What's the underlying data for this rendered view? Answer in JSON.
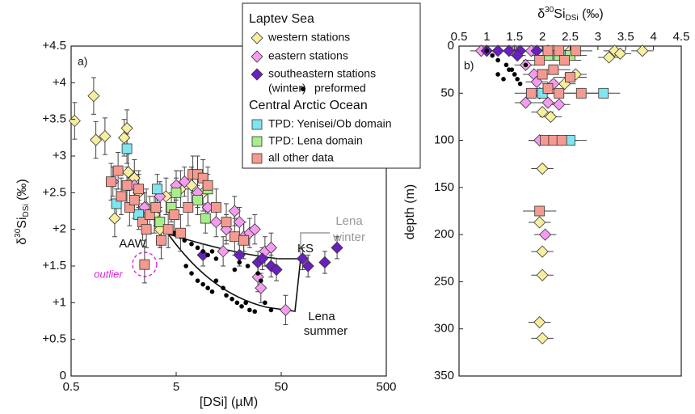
{
  "chart_data": [
    {
      "type": "scatter",
      "panel_label": "a)",
      "xscale": "log",
      "xlabel": "[DSi] (µM)",
      "ylabel": [
        "δ",
        "30",
        "Si",
        "DSi",
        " (‰)"
      ],
      "xlim": [
        0.5,
        500
      ],
      "xticks": [
        0.5,
        5,
        50,
        500
      ],
      "ylim": [
        0,
        4.5
      ],
      "yticks": [
        0,
        {
          "value": 0.5,
          "label": "+0.5"
        },
        {
          "value": 1,
          "label": "+1"
        },
        {
          "value": 1.5,
          "label": "+1.5"
        },
        {
          "value": 2,
          "label": "+2"
        },
        {
          "value": 2.5,
          "label": "+2.5"
        },
        {
          "value": 3,
          "label": "+3"
        },
        {
          "value": 3.5,
          "label": "+3.5"
        },
        {
          "value": 4,
          "label": "+4"
        },
        {
          "value": 4.5,
          "label": "+4.5"
        }
      ],
      "grid": false,
      "legend_groups": [
        "Laptev Sea",
        "Central Arctic Ocean"
      ],
      "annotations": [
        "AAW",
        "outlier",
        "Lena",
        "winter",
        "KS",
        "Lena",
        "summer"
      ],
      "series": [
        {
          "name": "western stations",
          "color": "#f7ef9e",
          "marker": "diamond",
          "error": 0.25,
          "x": [
            0.54,
            0.82,
            0.86,
            1.05,
            1.7,
            1.6,
            1.75,
            2.0,
            2.2,
            2.6,
            3.1,
            4,
            5.5,
            7,
            9,
            1.3,
            3.5
          ],
          "values": [
            3.48,
            3.82,
            3.22,
            3.27,
            3.38,
            3.25,
            2.78,
            2.7,
            2.5,
            2.3,
            2.2,
            2.45,
            2.55,
            2.6,
            2.5,
            2.15,
            2.0
          ]
        },
        {
          "name": "eastern stations",
          "color": "#f59cf0",
          "marker": "diamond",
          "error": 0.2,
          "x": [
            1.25,
            2.0,
            2.5,
            3.5,
            5,
            6,
            8,
            10,
            12,
            15,
            18,
            20,
            22,
            25,
            28,
            35,
            40,
            55,
            14,
            30,
            32
          ],
          "values": [
            2.65,
            2.6,
            2.3,
            2.45,
            2.6,
            2.65,
            2.5,
            2.3,
            2.1,
            2.0,
            2.25,
            2.1,
            1.9,
            1.95,
            2.0,
            1.7,
            1.75,
            0.9,
            1.7,
            1.35,
            1.2
          ]
        },
        {
          "name": "southeastern stations",
          "name_line2": "(winter)",
          "color": "#6a1fc0",
          "marker": "diamond",
          "error": 0.15,
          "x": [
            9,
            20,
            30,
            33,
            40,
            45,
            80,
            90,
            130,
            170
          ],
          "values": [
            1.65,
            1.65,
            1.55,
            1.6,
            1.5,
            1.45,
            1.6,
            1.5,
            1.55,
            1.75
          ]
        },
        {
          "name": "preformed",
          "color": "#000000",
          "marker": "circle",
          "x": [
            4.8,
            5.5,
            6,
            7,
            8,
            9,
            10,
            11,
            12,
            6.2,
            7,
            8,
            9,
            10,
            11,
            12,
            14,
            15,
            17,
            19,
            21,
            23,
            25,
            28,
            30,
            32,
            24,
            20,
            18,
            35,
            40
          ],
          "values": [
            1.95,
            1.9,
            1.85,
            1.8,
            1.75,
            1.7,
            1.65,
            1.7,
            1.6,
            1.5,
            1.4,
            1.3,
            1.25,
            1.2,
            1.15,
            1.3,
            1.2,
            1.1,
            1.05,
            1.0,
            0.95,
            1.0,
            0.9,
            0.88,
            1.4,
            1.3,
            1.5,
            1.55,
            1.45,
            1.0,
            0.9
          ]
        },
        {
          "name": "TPD: Yenisei/Ob domain",
          "color": "#7fe5f0",
          "marker": "square",
          "error": 0.2,
          "x": [
            1.35,
            1.7,
            2.2,
            3.3
          ],
          "values": [
            2.35,
            3.1,
            2.2,
            2.55
          ]
        },
        {
          "name": "TPD: Lena domain",
          "color": "#a8ef8a",
          "marker": "square",
          "error": 0.2,
          "x": [
            3.5,
            4.5,
            5,
            10,
            9.5,
            8
          ],
          "values": [
            2.1,
            2.3,
            2.5,
            2.55,
            2.15,
            2.4
          ]
        },
        {
          "name": "all other data",
          "color": "#f59a90",
          "marker": "square",
          "error": 0.25,
          "x": [
            1.2,
            1.4,
            1.5,
            1.7,
            1.8,
            2.0,
            2.2,
            2.4,
            2.6,
            2.8,
            3.2,
            3.6,
            4.2,
            4.8,
            5.5,
            6.5,
            7.2,
            8,
            9,
            10,
            12,
            15,
            18,
            22,
            2.5
          ],
          "values": [
            2.65,
            2.8,
            2.45,
            2.6,
            2.3,
            2.4,
            2.55,
            2.1,
            2.0,
            2.2,
            2.3,
            1.85,
            2.0,
            2.2,
            1.95,
            2.3,
            2.75,
            2.75,
            2.7,
            2.6,
            2.3,
            2.1,
            1.9,
            1.85,
            1.52
          ]
        }
      ]
    },
    {
      "type": "scatter",
      "panel_label": "b)",
      "xlabel": [
        "δ",
        "30",
        "Si",
        "DSi",
        " (‰)"
      ],
      "ylabel": "depth (m)",
      "xlim": [
        0.5,
        4.5
      ],
      "xticks": [
        0.5,
        1,
        1.5,
        2,
        2.5,
        3,
        3.5,
        4,
        4.5
      ],
      "ylim": [
        0,
        350
      ],
      "yticks": [
        0,
        50,
        100,
        150,
        200,
        250,
        300,
        350
      ],
      "yreverse": true,
      "grid": false,
      "series": [
        {
          "color": "#f7ef9e",
          "marker": "diamond",
          "xerror": 0.2,
          "x": [
            3.8,
            3.3,
            3.4,
            3.2,
            2.5,
            2.2,
            2.6,
            2.4,
            2.1,
            2.0,
            2.15,
            2.0,
            1.95,
            2.0,
            2.0,
            1.95,
            2.0
          ],
          "values": [
            5,
            5,
            8,
            12,
            5,
            5,
            30,
            40,
            45,
            70,
            75,
            130,
            187,
            218,
            243,
            293,
            310
          ]
        },
        {
          "color": "#f59cf0",
          "marker": "diamond",
          "xerror": 0.2,
          "x": [
            0.9,
            1.5,
            1.8,
            2.1,
            1.7,
            1.85,
            1.9,
            2.2,
            1.95,
            2.1,
            2.3,
            1.7,
            1.95,
            2.05
          ],
          "values": [
            5,
            5,
            5,
            5,
            20,
            30,
            38,
            40,
            50,
            60,
            62,
            60,
            100,
            200
          ]
        },
        {
          "color": "#6a1fc0",
          "marker": "diamond",
          "xerror": 0.15,
          "x": [
            1.0,
            1.2,
            1.4,
            1.6,
            1.55,
            1.9
          ],
          "values": [
            5,
            5,
            5,
            5,
            10,
            5
          ]
        },
        {
          "color": "#000000",
          "marker": "circle",
          "x": [
            1.0,
            1.1,
            1.2,
            1.35,
            1.45,
            1.5,
            1.55,
            1.6,
            1.2,
            1.3,
            1.4,
            1.7
          ],
          "values": [
            5,
            10,
            15,
            20,
            25,
            30,
            35,
            40,
            30,
            35,
            25,
            20
          ]
        },
        {
          "color": "#7fe5f0",
          "marker": "square",
          "xerror": 0.3,
          "x": [
            2.2,
            2.35,
            2.0,
            3.1,
            2.5
          ],
          "values": [
            10,
            10,
            50,
            50,
            100
          ]
        },
        {
          "color": "#a8ef8a",
          "marker": "square",
          "xerror": 0.3,
          "x": [
            2.1,
            2.3,
            2.5
          ],
          "values": [
            10,
            10,
            10
          ]
        },
        {
          "color": "#f59a90",
          "marker": "square",
          "xerror": 0.3,
          "x": [
            2.1,
            2.3,
            2.6,
            1.95,
            2.4,
            2.0,
            2.2,
            2.5,
            2.7,
            2.3,
            2.1,
            1.8,
            2.05,
            2.2,
            2.35,
            1.95
          ],
          "values": [
            5,
            5,
            5,
            15,
            15,
            30,
            25,
            33,
            50,
            50,
            45,
            50,
            100,
            100,
            100,
            175
          ]
        }
      ]
    }
  ]
}
